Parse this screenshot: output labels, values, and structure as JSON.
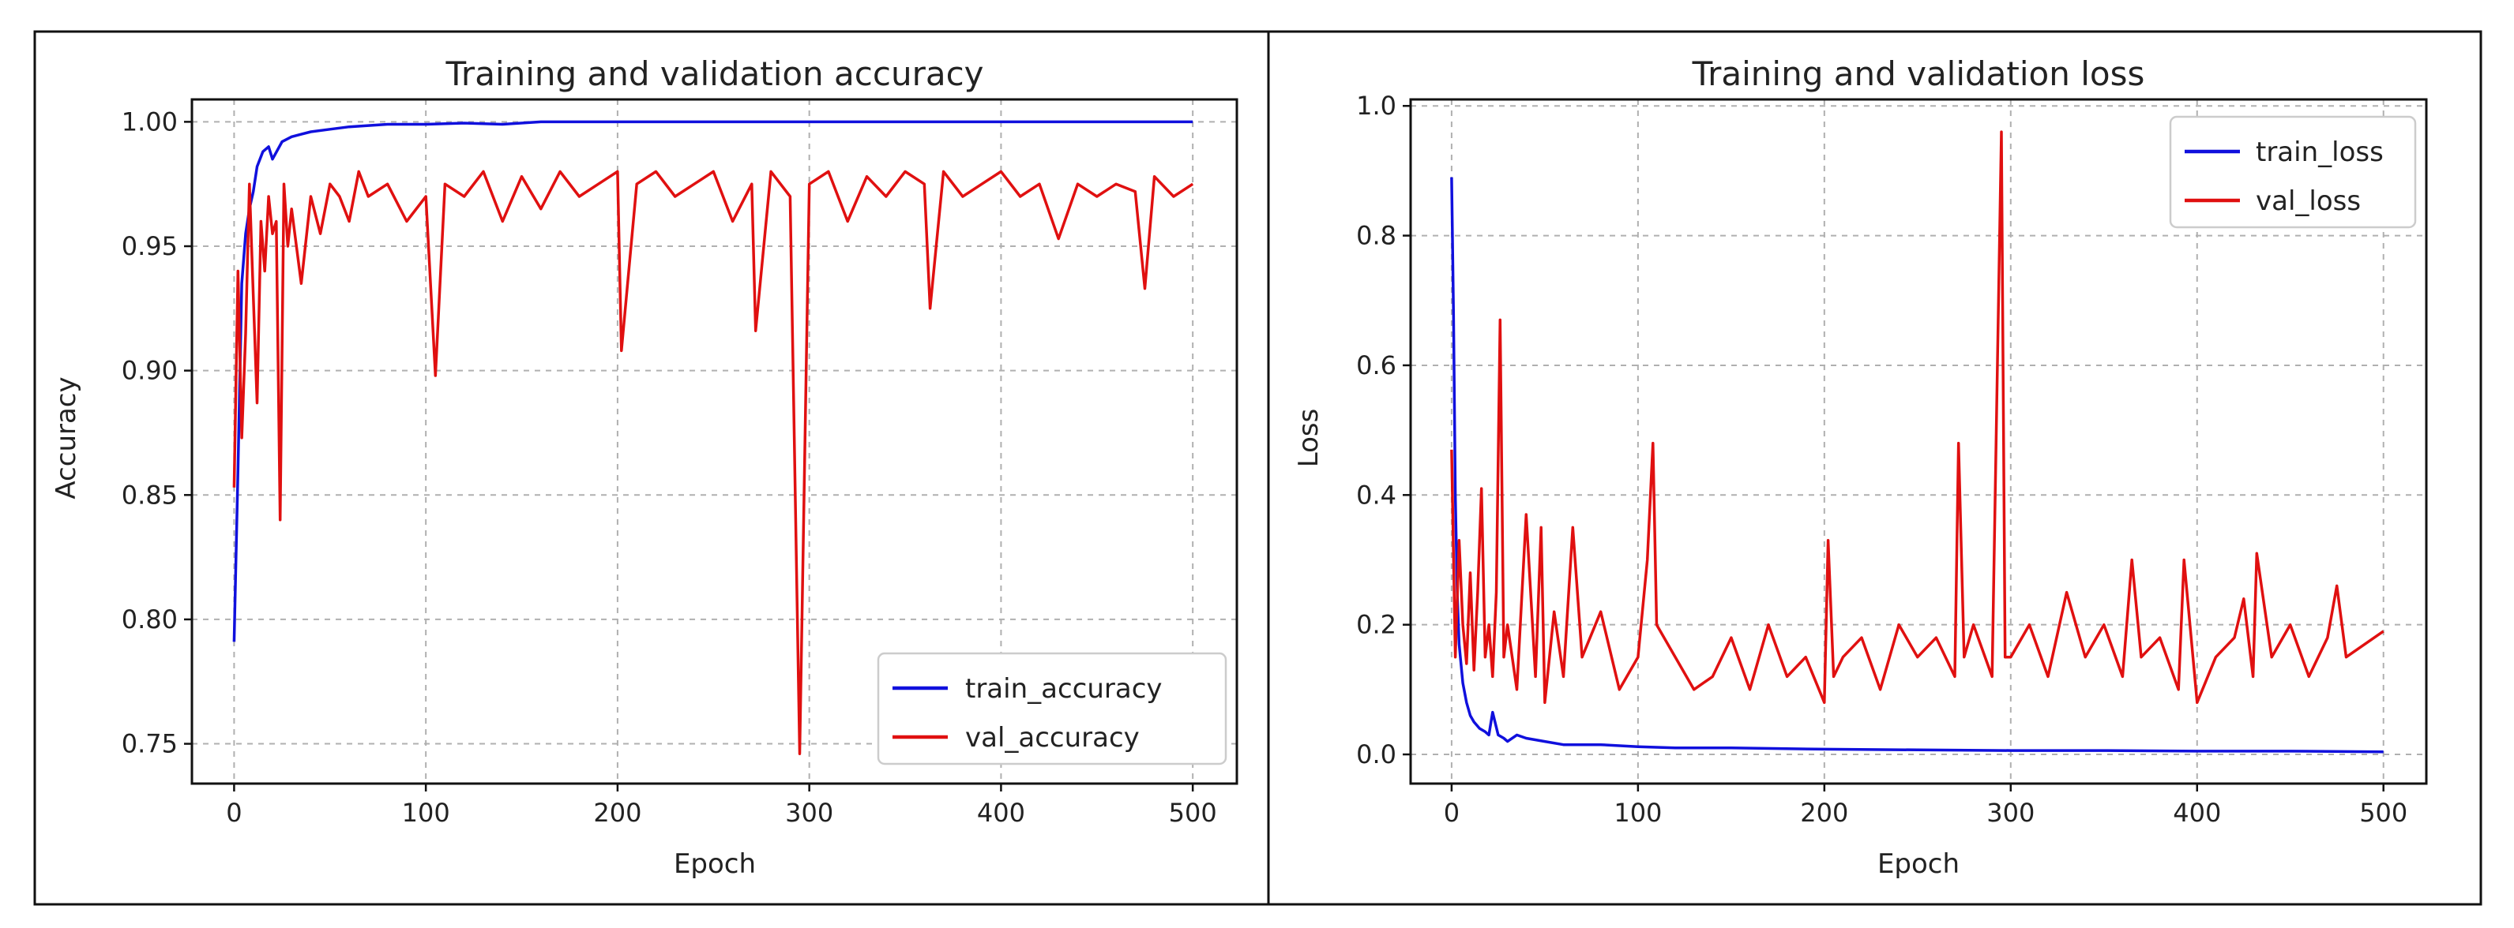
{
  "chart_data": [
    {
      "type": "line",
      "title": "Training and validation accuracy",
      "xlabel": "Epoch",
      "ylabel": "Accuracy",
      "xlim": [
        -22,
        523
      ],
      "ylim": [
        0.734,
        1.009
      ],
      "xticks": [
        0,
        100,
        200,
        300,
        400,
        500
      ],
      "xtick_labels": [
        "0",
        "100",
        "200",
        "300",
        "400",
        "500"
      ],
      "yticks": [
        0.75,
        0.8,
        0.85,
        0.9,
        0.95,
        1.0
      ],
      "ytick_labels": [
        "0.75",
        "0.80",
        "0.85",
        "0.90",
        "0.95",
        "1.00"
      ],
      "grid": true,
      "legend_position": "lower-right",
      "series": [
        {
          "name": "train_accuracy",
          "color": "#1010dd",
          "x": [
            0,
            2,
            4,
            6,
            8,
            10,
            12,
            15,
            18,
            20,
            25,
            30,
            40,
            50,
            60,
            80,
            100,
            120,
            140,
            160,
            200,
            250,
            300,
            350,
            400,
            450,
            500
          ],
          "y": [
            0.791,
            0.86,
            0.935,
            0.955,
            0.965,
            0.972,
            0.982,
            0.988,
            0.99,
            0.985,
            0.992,
            0.994,
            0.996,
            0.997,
            0.998,
            0.999,
            0.999,
            0.9995,
            0.999,
            1.0,
            1.0,
            1.0,
            1.0,
            1.0,
            1.0,
            1.0,
            1.0
          ]
        },
        {
          "name": "val_accuracy",
          "color": "#e01010",
          "x": [
            0,
            2,
            4,
            6,
            8,
            10,
            12,
            14,
            16,
            18,
            20,
            22,
            24,
            26,
            28,
            30,
            35,
            40,
            45,
            50,
            55,
            60,
            65,
            70,
            80,
            90,
            100,
            105,
            110,
            120,
            130,
            140,
            150,
            160,
            170,
            180,
            190,
            200,
            202,
            210,
            220,
            230,
            240,
            250,
            260,
            270,
            272,
            280,
            290,
            295,
            300,
            310,
            320,
            330,
            340,
            350,
            360,
            363,
            370,
            380,
            390,
            400,
            410,
            420,
            430,
            440,
            450,
            460,
            470,
            475,
            480,
            490,
            500
          ],
          "y": [
            0.853,
            0.94,
            0.873,
            0.915,
            0.975,
            0.93,
            0.887,
            0.96,
            0.94,
            0.97,
            0.955,
            0.96,
            0.84,
            0.975,
            0.95,
            0.965,
            0.935,
            0.97,
            0.955,
            0.975,
            0.97,
            0.96,
            0.98,
            0.97,
            0.975,
            0.96,
            0.97,
            0.898,
            0.975,
            0.97,
            0.98,
            0.96,
            0.978,
            0.965,
            0.98,
            0.97,
            0.975,
            0.98,
            0.908,
            0.975,
            0.98,
            0.97,
            0.975,
            0.98,
            0.96,
            0.975,
            0.916,
            0.98,
            0.97,
            0.746,
            0.975,
            0.98,
            0.96,
            0.978,
            0.97,
            0.98,
            0.975,
            0.925,
            0.98,
            0.97,
            0.975,
            0.98,
            0.97,
            0.975,
            0.953,
            0.975,
            0.97,
            0.975,
            0.972,
            0.933,
            0.978,
            0.97,
            0.975
          ]
        }
      ]
    },
    {
      "type": "line",
      "title": "Training and validation loss",
      "xlabel": "Epoch",
      "ylabel": "Loss",
      "xlim": [
        -22,
        523
      ],
      "ylim": [
        -0.045,
        1.01
      ],
      "xticks": [
        0,
        100,
        200,
        300,
        400,
        500
      ],
      "xtick_labels": [
        "0",
        "100",
        "200",
        "300",
        "400",
        "500"
      ],
      "yticks": [
        0.0,
        0.2,
        0.4,
        0.6,
        0.8,
        1.0
      ],
      "ytick_labels": [
        "0.0",
        "0.2",
        "0.4",
        "0.6",
        "0.8",
        "1.0"
      ],
      "grid": true,
      "legend_position": "upper-right",
      "series": [
        {
          "name": "train_loss",
          "color": "#1010dd",
          "x": [
            0,
            1,
            2,
            3,
            4,
            6,
            8,
            10,
            12,
            15,
            18,
            20,
            22,
            25,
            28,
            30,
            35,
            40,
            50,
            60,
            80,
            100,
            120,
            150,
            200,
            250,
            300,
            350,
            400,
            450,
            500
          ],
          "y": [
            0.89,
            0.68,
            0.4,
            0.25,
            0.17,
            0.11,
            0.08,
            0.06,
            0.05,
            0.04,
            0.035,
            0.03,
            0.065,
            0.03,
            0.025,
            0.02,
            0.03,
            0.025,
            0.02,
            0.015,
            0.015,
            0.012,
            0.01,
            0.01,
            0.008,
            0.007,
            0.006,
            0.006,
            0.005,
            0.005,
            0.004
          ]
        },
        {
          "name": "val_loss",
          "color": "#e01010",
          "x": [
            0,
            2,
            4,
            6,
            8,
            10,
            12,
            14,
            16,
            18,
            20,
            22,
            24,
            26,
            28,
            30,
            35,
            40,
            45,
            48,
            50,
            55,
            60,
            65,
            70,
            80,
            90,
            100,
            105,
            108,
            110,
            120,
            130,
            140,
            150,
            160,
            170,
            180,
            190,
            200,
            202,
            205,
            210,
            220,
            230,
            240,
            250,
            260,
            270,
            272,
            275,
            280,
            290,
            295,
            297,
            300,
            310,
            320,
            330,
            340,
            350,
            360,
            365,
            370,
            380,
            390,
            393,
            400,
            410,
            420,
            425,
            430,
            432,
            440,
            450,
            460,
            470,
            475,
            480,
            490,
            500
          ],
          "y": [
            0.47,
            0.15,
            0.33,
            0.2,
            0.14,
            0.28,
            0.13,
            0.25,
            0.41,
            0.15,
            0.2,
            0.12,
            0.25,
            0.67,
            0.15,
            0.2,
            0.1,
            0.37,
            0.12,
            0.35,
            0.08,
            0.22,
            0.12,
            0.35,
            0.15,
            0.22,
            0.1,
            0.15,
            0.3,
            0.48,
            0.2,
            0.15,
            0.1,
            0.12,
            0.18,
            0.1,
            0.2,
            0.12,
            0.15,
            0.08,
            0.33,
            0.12,
            0.15,
            0.18,
            0.1,
            0.2,
            0.15,
            0.18,
            0.12,
            0.48,
            0.15,
            0.2,
            0.12,
            0.96,
            0.15,
            0.15,
            0.2,
            0.12,
            0.25,
            0.15,
            0.2,
            0.12,
            0.3,
            0.15,
            0.18,
            0.1,
            0.3,
            0.08,
            0.15,
            0.18,
            0.24,
            0.12,
            0.31,
            0.15,
            0.2,
            0.12,
            0.18,
            0.26,
            0.15,
            0.17,
            0.19
          ]
        }
      ]
    }
  ]
}
